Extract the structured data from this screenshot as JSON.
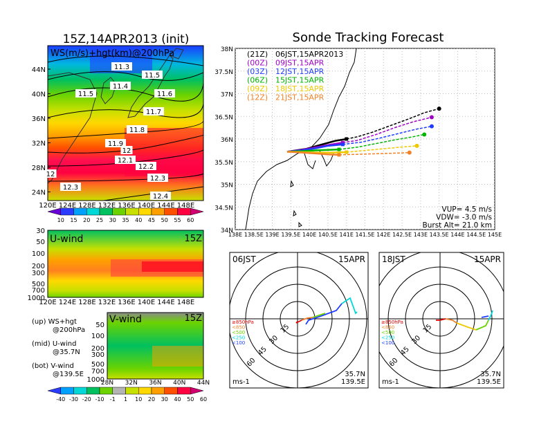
{
  "left_title": "15Z,14APR2013 (init)",
  "right_title": "Sonde Tracking Forecast",
  "upper_map": {
    "label": "WS(m/s)+hgt(km)@200hPa",
    "lat_ticks": [
      "44N",
      "40N",
      "36N",
      "32N",
      "28N",
      "24N"
    ],
    "lon_ticks": [
      "120E",
      "124E",
      "128E",
      "132E",
      "136E",
      "140E",
      "144E",
      "148E"
    ],
    "contour_labels": [
      "11.3",
      "11.5",
      "11.4",
      "11.5",
      "11.6",
      "11.7",
      "11.8",
      "11.9",
      "12",
      "12.1",
      "12.2",
      "12.3",
      "12.3",
      "12.4",
      "12"
    ],
    "colorbar_ticks": [
      "10",
      "15",
      "20",
      "25",
      "30",
      "35",
      "40",
      "45",
      "50",
      "55",
      "60"
    ],
    "colorbar_colors": [
      "#6a00d8",
      "#2a3cff",
      "#00a0ff",
      "#00d8d8",
      "#00c060",
      "#6cd300",
      "#c8e000",
      "#ffd800",
      "#ffa000",
      "#ff5000",
      "#ff0040",
      "#d00070"
    ]
  },
  "uwind": {
    "label": "U-wind",
    "time": "15Z",
    "y_ticks": [
      "30",
      "50",
      "100",
      "200",
      "300",
      "500",
      "700",
      "1000"
    ],
    "x_ticks": [
      "120E",
      "124E",
      "128E",
      "132E",
      "136E",
      "140E",
      "144E",
      "148E"
    ]
  },
  "vwind": {
    "label": "V-wind",
    "time": "15Z",
    "y_ticks": [
      "50",
      "100",
      "200",
      "300",
      "500",
      "700",
      "1000"
    ],
    "x_ticks": [
      "28N",
      "32N",
      "36N",
      "40N",
      "44N"
    ],
    "colorbar_ticks": [
      "-40",
      "-30",
      "-20",
      "-10",
      "-1",
      "1",
      "10",
      "20",
      "30",
      "40",
      "50",
      "60"
    ],
    "colorbar_colors": [
      "#2a3cff",
      "#00a0ff",
      "#00d8d8",
      "#00c060",
      "#6cd300",
      "#b4b4b4",
      "#c8e000",
      "#ffd800",
      "#ffa000",
      "#ff5000",
      "#ff0040",
      "#d00070"
    ]
  },
  "notes": [
    {
      "line1": "(up) WS+hgt",
      "line2": "@200hPa"
    },
    {
      "line1": "(mid) U-wind",
      "line2": "@35.7N"
    },
    {
      "line1": "(bot) V-wind",
      "line2": "@139.5E"
    }
  ],
  "track_map": {
    "lat_ticks": [
      "38N",
      "37.5N",
      "37N",
      "36.5N",
      "36N",
      "35.5N",
      "35N",
      "34.5N",
      "34N"
    ],
    "lon_ticks": [
      "138E",
      "138.5E",
      "139E",
      "139.5E",
      "140E",
      "140.5E",
      "141E",
      "141.5E",
      "142E",
      "142.5E",
      "143E",
      "143.5E",
      "144E",
      "144.5E",
      "145E"
    ],
    "legend": [
      {
        "code": "(21Z)",
        "label": "06JST,15APR2013",
        "color": "#000000"
      },
      {
        "code": "(00Z)",
        "label": "09JST,15APR",
        "color": "#a000c8"
      },
      {
        "code": "(03Z)",
        "label": "12JST,15APR",
        "color": "#1e3cff"
      },
      {
        "code": "(06Z)",
        "label": "15JST,15APR",
        "color": "#00b400"
      },
      {
        "code": "(09Z)",
        "label": "18JST,15APR",
        "color": "#f0c800"
      },
      {
        "code": "(12Z)",
        "label": "21JST,15APR",
        "color": "#f08228"
      }
    ],
    "params": [
      "VUP= 4.5 m/s",
      "VDW= -3.0 m/s",
      "Burst Alt= 21.0 km"
    ]
  },
  "hodo_left": {
    "time": "06JST",
    "date": "15APR",
    "location": [
      "35.7N",
      "139.5E"
    ],
    "unit": "ms-1",
    "rings": [
      "15",
      "30",
      "45",
      "60"
    ],
    "legend": [
      "≥850hPa",
      "<850",
      "<500",
      "<250",
      "<100"
    ]
  },
  "hodo_right": {
    "time": "18JST",
    "date": "15APR",
    "location": [
      "35.7N",
      "139.5E"
    ],
    "unit": "ms-1",
    "rings": [
      "15",
      "30",
      "45",
      "60"
    ],
    "legend": [
      "≥850hPa",
      "<850",
      "<500",
      "<250",
      "<100"
    ]
  },
  "chart_data": {
    "type": "line",
    "title": "Sonde Tracking Forecast",
    "xlabel": "",
    "ylabel": "",
    "xlim": [
      138,
      145
    ],
    "ylim": [
      34,
      38
    ],
    "series": [
      {
        "name": "06JST,15APR2013",
        "color": "#000000",
        "x": [
          139.4,
          139.9,
          140.3,
          140.7,
          141.0,
          141.3,
          141.7,
          142.2,
          142.7,
          143.1,
          143.5
        ],
        "y": [
          35.72,
          35.78,
          35.87,
          35.96,
          36.0,
          36.05,
          36.15,
          36.3,
          36.45,
          36.58,
          36.67
        ]
      },
      {
        "name": "09JST,15APR",
        "color": "#a000c8",
        "x": [
          139.4,
          139.8,
          140.2,
          140.6,
          140.9,
          141.3,
          141.8,
          142.3,
          142.8,
          143.3
        ],
        "y": [
          35.72,
          35.76,
          35.82,
          35.88,
          35.92,
          35.97,
          36.1,
          36.25,
          36.38,
          36.48
        ]
      },
      {
        "name": "12JST,15APR",
        "color": "#1e3cff",
        "x": [
          139.4,
          139.8,
          140.2,
          140.5,
          140.9,
          141.4,
          141.9,
          142.4,
          142.9,
          143.3
        ],
        "y": [
          35.72,
          35.75,
          35.8,
          35.85,
          35.88,
          35.93,
          36.02,
          36.12,
          36.22,
          36.28
        ]
      },
      {
        "name": "15JST,15APR",
        "color": "#00b400",
        "x": [
          139.4,
          139.8,
          140.2,
          140.5,
          140.8,
          141.3,
          141.8,
          142.3,
          142.8,
          143.1
        ],
        "y": [
          35.72,
          35.73,
          35.75,
          35.76,
          35.77,
          35.82,
          35.9,
          35.98,
          36.05,
          36.1
        ]
      },
      {
        "name": "18JST,15APR",
        "color": "#f0c800",
        "x": [
          139.4,
          139.8,
          140.2,
          140.6,
          141.0,
          141.4,
          141.8,
          142.2,
          142.6,
          142.9
        ],
        "y": [
          35.72,
          35.71,
          35.7,
          35.7,
          35.71,
          35.74,
          35.77,
          35.8,
          35.83,
          35.85
        ]
      },
      {
        "name": "21JST,15APR",
        "color": "#f08228",
        "x": [
          139.4,
          139.8,
          140.2,
          140.5,
          140.8,
          141.2,
          141.6,
          142.0,
          142.4,
          142.7
        ],
        "y": [
          35.72,
          35.7,
          35.68,
          35.66,
          35.65,
          35.66,
          35.67,
          35.68,
          35.69,
          35.7
        ]
      }
    ]
  }
}
